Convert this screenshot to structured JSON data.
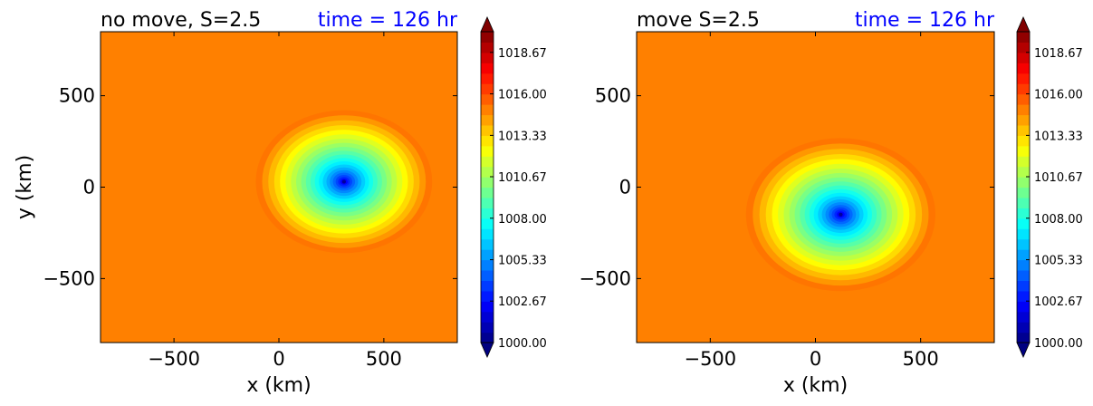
{
  "chart_data": [
    {
      "type": "heatmap",
      "title": "no move, S=2.5",
      "title_right": "time = 126 hr",
      "title_right_color": "#0000ff",
      "xlabel": "x (km)",
      "ylabel": "y (km)",
      "xlim": [
        -850,
        850
      ],
      "ylim": [
        -850,
        850
      ],
      "xticks": [
        -500,
        0,
        500
      ],
      "xtick_labels": [
        "−500",
        "0",
        "500"
      ],
      "yticks": [
        -500,
        0,
        500
      ],
      "ytick_labels": [
        "−500",
        "0",
        "500"
      ],
      "background_pressure": 1015.0,
      "vortex": {
        "center": [
          310,
          30
        ],
        "min_pressure": 1000.5,
        "outer_pressure": 1015.2,
        "radius": 420
      },
      "colorbar": {
        "min": 1000.0,
        "max": 1020.0,
        "extend": "both",
        "tick_values": [
          1000.0,
          1002.67,
          1005.33,
          1008.0,
          1010.67,
          1013.33,
          1016.0,
          1018.67
        ],
        "tick_labels": [
          "1000.00",
          "1002.67",
          "1005.33",
          "1008.00",
          "1010.67",
          "1013.33",
          "1016.00",
          "1018.67"
        ]
      }
    },
    {
      "type": "heatmap",
      "title": "move S=2.5",
      "title_right": "time = 126 hr",
      "title_right_color": "#0000ff",
      "xlabel": "x (km)",
      "ylabel": "",
      "xlim": [
        -850,
        850
      ],
      "ylim": [
        -850,
        850
      ],
      "xticks": [
        -500,
        0,
        500
      ],
      "xtick_labels": [
        "−500",
        "0",
        "500"
      ],
      "yticks": [
        -500,
        0,
        500
      ],
      "ytick_labels": [
        "−500",
        "0",
        "500"
      ],
      "background_pressure": 1015.0,
      "vortex": {
        "center": [
          120,
          -150
        ],
        "min_pressure": 1000.5,
        "outer_pressure": 1015.2,
        "radius": 450
      },
      "colorbar": {
        "min": 1000.0,
        "max": 1020.0,
        "extend": "both",
        "tick_values": [
          1000.0,
          1002.67,
          1005.33,
          1008.0,
          1010.67,
          1013.33,
          1016.0,
          1018.67
        ],
        "tick_labels": [
          "1000.00",
          "1002.67",
          "1005.33",
          "1008.00",
          "1010.67",
          "1013.33",
          "1016.00",
          "1018.67"
        ]
      }
    }
  ]
}
